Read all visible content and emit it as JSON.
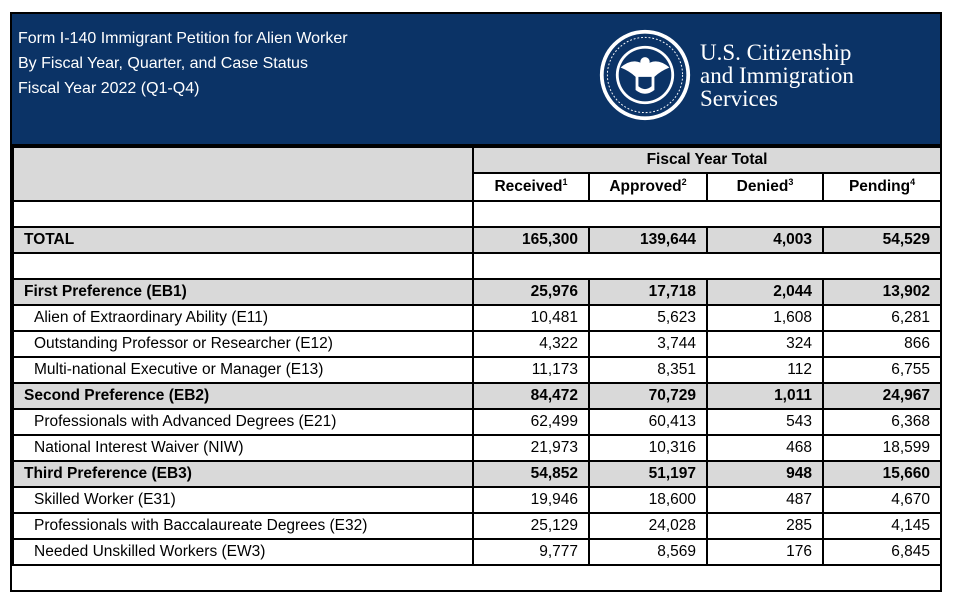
{
  "header": {
    "title_lines": [
      "Form I-140 Immigrant Petition for Alien Worker",
      "By Fiscal Year, Quarter, and Case Status",
      "Fiscal Year 2022 (Q1-Q4)"
    ],
    "agency_lines": [
      "U.S. Citizenship",
      "and Immigration",
      "Services"
    ],
    "seal_text": "U.S. DEPARTMENT OF HOMELAND SECURITY",
    "colors": {
      "banner": "#0b3366",
      "row_shade": "#d9d9d9"
    }
  },
  "table": {
    "group_header": "Fiscal Year Total",
    "columns": [
      {
        "label": "Received",
        "note": "1"
      },
      {
        "label": "Approved",
        "note": "2"
      },
      {
        "label": "Denied",
        "note": "3"
      },
      {
        "label": "Pending",
        "note": "4"
      }
    ],
    "rows": [
      {
        "type": "blank",
        "label": "",
        "values": []
      },
      {
        "type": "bold",
        "label": "TOTAL",
        "values": [
          "165,300",
          "139,644",
          "4,003",
          "54,529"
        ]
      },
      {
        "type": "blank",
        "label": "",
        "values": []
      },
      {
        "type": "bold",
        "label": "First Preference (EB1)",
        "values": [
          "25,976",
          "17,718",
          "2,044",
          "13,902"
        ]
      },
      {
        "type": "sub",
        "label": "Alien of Extraordinary Ability (E11)",
        "values": [
          "10,481",
          "5,623",
          "1,608",
          "6,281"
        ]
      },
      {
        "type": "sub",
        "label": "Outstanding Professor or Researcher (E12)",
        "values": [
          "4,322",
          "3,744",
          "324",
          "866"
        ]
      },
      {
        "type": "sub",
        "label": "Multi-national Executive or Manager (E13)",
        "values": [
          "11,173",
          "8,351",
          "112",
          "6,755"
        ]
      },
      {
        "type": "bold",
        "label": "Second Preference (EB2)",
        "values": [
          "84,472",
          "70,729",
          "1,011",
          "24,967"
        ]
      },
      {
        "type": "sub",
        "label": "Professionals with Advanced Degrees (E21)",
        "values": [
          "62,499",
          "60,413",
          "543",
          "6,368"
        ]
      },
      {
        "type": "sub",
        "label": "National Interest Waiver (NIW)",
        "values": [
          "21,973",
          "10,316",
          "468",
          "18,599"
        ]
      },
      {
        "type": "bold",
        "label": "Third Preference (EB3)",
        "values": [
          "54,852",
          "51,197",
          "948",
          "15,660"
        ]
      },
      {
        "type": "sub",
        "label": "Skilled Worker (E31)",
        "values": [
          "19,946",
          "18,600",
          "487",
          "4,670"
        ]
      },
      {
        "type": "sub",
        "label": "Professionals with Baccalaureate Degrees (E32)",
        "values": [
          "25,129",
          "24,028",
          "285",
          "4,145"
        ]
      },
      {
        "type": "sub",
        "label": "Needed Unskilled Workers (EW3)",
        "values": [
          "9,777",
          "8,569",
          "176",
          "6,845"
        ]
      }
    ]
  }
}
